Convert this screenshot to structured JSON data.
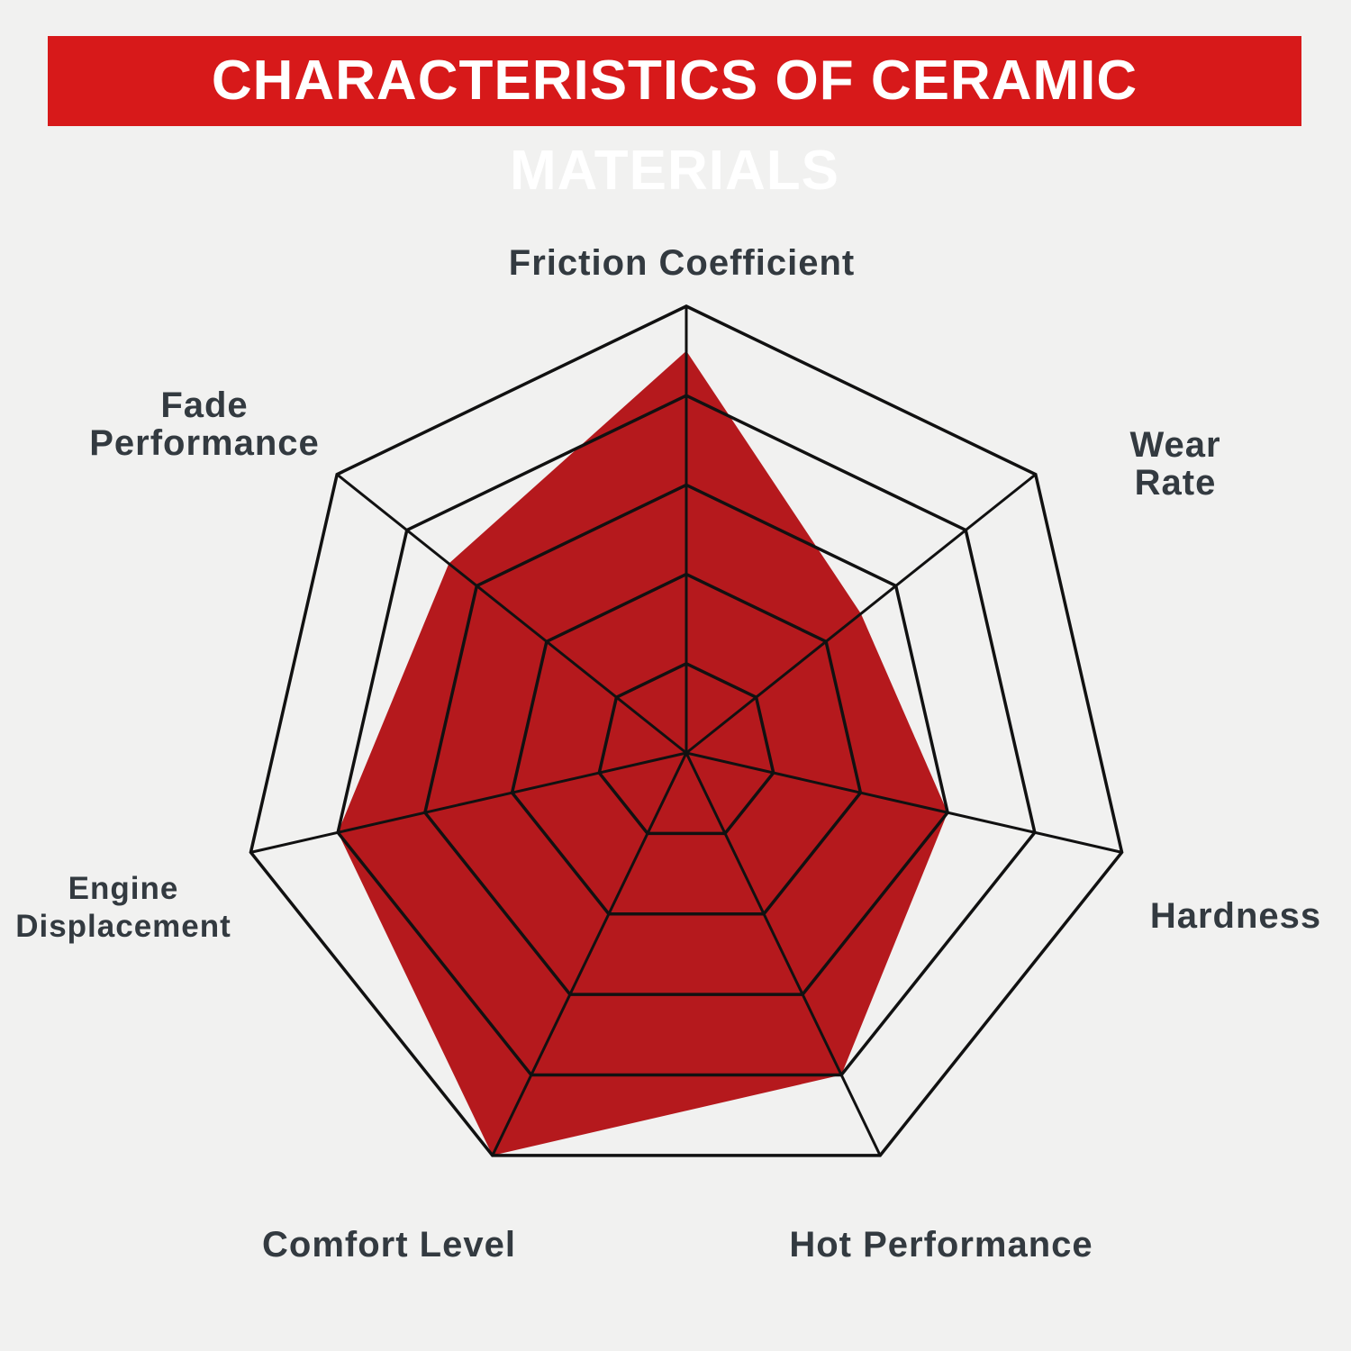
{
  "chart_data": {
    "type": "radar",
    "title": "CHARACTERISTICS OF CERAMIC MATERIALS",
    "categories": [
      "Friction Coefficient",
      "Wear Rate",
      "Hardness",
      "Hot Performance",
      "Comfort Level",
      "Engine Displacement",
      "Fade Performance"
    ],
    "values": [
      4.5,
      2.5,
      3,
      4,
      5,
      4,
      3.4
    ],
    "color": "#b5191d",
    "rlim": [
      0,
      5
    ],
    "rticks": [
      1,
      2,
      3,
      4,
      5
    ],
    "grid": true
  }
}
